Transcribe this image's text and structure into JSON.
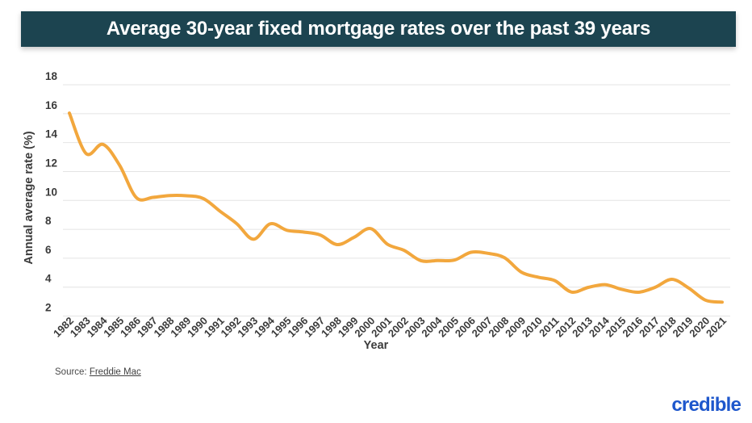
{
  "header": {
    "title": "Average 30-year fixed mortgage rates over the past 39 years",
    "bg_color": "#1c4450",
    "text_color": "#ffffff"
  },
  "chart_data": {
    "type": "line",
    "title": "Average 30-year fixed mortgage rates over the past 39 years",
    "x": [
      1982,
      1983,
      1984,
      1985,
      1986,
      1987,
      1988,
      1989,
      1990,
      1991,
      1992,
      1993,
      1994,
      1995,
      1996,
      1997,
      1998,
      1999,
      2000,
      2001,
      2002,
      2003,
      2004,
      2005,
      2006,
      2007,
      2008,
      2009,
      2010,
      2011,
      2012,
      2013,
      2014,
      2015,
      2016,
      2017,
      2018,
      2019,
      2020,
      2021
    ],
    "series": [
      {
        "color": "#F2A73D",
        "values": [
          16.04,
          13.24,
          13.88,
          12.43,
          10.19,
          10.21,
          10.34,
          10.32,
          10.13,
          9.25,
          8.39,
          7.31,
          8.38,
          7.93,
          7.81,
          7.6,
          6.94,
          7.44,
          8.05,
          6.97,
          6.54,
          5.83,
          5.84,
          5.87,
          6.41,
          6.34,
          6.03,
          5.04,
          4.69,
          4.45,
          3.66,
          3.98,
          4.17,
          3.85,
          3.65,
          3.99,
          4.54,
          3.94,
          3.1,
          2.96
        ]
      }
    ],
    "xlabel": "Year",
    "ylabel": "Annual average rate (%)",
    "ylim": [
      2,
      18
    ],
    "yticks": [
      2,
      4,
      6,
      8,
      10,
      12,
      14,
      16,
      18
    ],
    "grid": true,
    "grid_color": "#e4e4e4",
    "tick_color": "#3b3b3b",
    "legend": false,
    "smooth": true
  },
  "source": {
    "prefix": "Source: ",
    "link_text": "Freddie Mac"
  },
  "branding": {
    "logo_text": "credible",
    "color": "#1e57cc"
  }
}
